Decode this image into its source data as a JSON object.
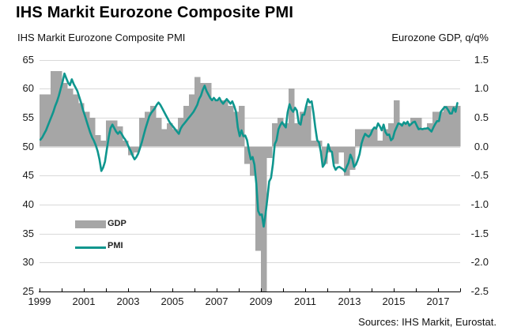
{
  "title": "IHS Markit Eurozone Composite PMI",
  "axis_titles": {
    "left": "IHS Markit Eurozone Composite PMI",
    "right": "Eurozone GDP, q/q%"
  },
  "legend": {
    "gdp": "GDP",
    "pmi": "PMI"
  },
  "source": "Sources: IHS Markit, Eurostat.",
  "colors": {
    "bar": "#a6a6a6",
    "line": "#0f968e",
    "grid": "#d9d9d9",
    "axis": "#000000",
    "text": "#1a1a1a"
  },
  "chart_data": {
    "type": "combo",
    "title": "IHS Markit Eurozone Composite PMI",
    "grid": true,
    "legend_position": "inside-bottom-left",
    "left_axis": {
      "label": "IHS Markit Eurozone Composite PMI",
      "min": 25,
      "max": 65,
      "tick_labels": [
        "65",
        "60",
        "55",
        "50",
        "45",
        "40",
        "35",
        "30",
        "25"
      ]
    },
    "right_axis": {
      "label": "Eurozone GDP, q/q%",
      "min": -1.5,
      "max": 1.5,
      "tick_labels": [
        "1.5",
        "1.0",
        "0.5",
        "0.0",
        "-0.5",
        "-1.0",
        "-1.5",
        "-2.0",
        "-2.5"
      ],
      "mapping_note": "right axis value = (left PMI value - 50) / 10"
    },
    "x_axis": {
      "min_year": 1999,
      "max_year": 2018,
      "tick_years": [
        1999,
        2000,
        2001,
        2002,
        2003,
        2004,
        2005,
        2006,
        2007,
        2008,
        2009,
        2010,
        2011,
        2012,
        2013,
        2014,
        2015,
        2016,
        2017,
        2018
      ],
      "tick_labels": [
        "1999",
        "2001",
        "2003",
        "2005",
        "2007",
        "2009",
        "2011",
        "2013",
        "2015",
        "2017"
      ]
    },
    "series": [
      {
        "name": "GDP",
        "type": "bar",
        "axis": "right",
        "color": "#a6a6a6",
        "frequency": "quarterly",
        "start": "1999-Q1",
        "values": [
          0.9,
          0.9,
          1.3,
          1.3,
          1.1,
          1.0,
          0.9,
          0.75,
          0.6,
          0.5,
          0.2,
          0.1,
          0.45,
          0.45,
          0.35,
          0.1,
          -0.15,
          -0.1,
          0.5,
          0.6,
          0.7,
          0.5,
          0.3,
          0.4,
          0.3,
          0.5,
          0.7,
          0.9,
          1.2,
          1.1,
          1.1,
          0.8,
          0.8,
          0.8,
          0.7,
          0.6,
          0.7,
          -0.3,
          -0.5,
          -1.8,
          -2.8,
          -0.2,
          0.4,
          0.5,
          0.4,
          1.0,
          0.4,
          0.6,
          0.7,
          0.1,
          0.1,
          -0.3,
          -0.1,
          -0.3,
          -0.1,
          -0.5,
          -0.4,
          0.3,
          0.3,
          0.3,
          0.3,
          0.1,
          0.3,
          0.4,
          0.8,
          0.4,
          0.4,
          0.5,
          0.5,
          0.3,
          0.4,
          0.6,
          0.6,
          0.7,
          0.7,
          0.7
        ]
      },
      {
        "name": "PMI",
        "type": "line",
        "axis": "left",
        "color": "#0f968e",
        "frequency": "monthly",
        "start": "1999-01",
        "values": [
          51.2,
          51.6,
          52.2,
          52.8,
          53.6,
          54.4,
          55.2,
          56.0,
          57.0,
          57.8,
          58.8,
          60.0,
          61.2,
          62.6,
          61.8,
          61.0,
          60.6,
          61.6,
          60.8,
          60.2,
          59.6,
          58.6,
          57.6,
          56.4,
          55.4,
          54.4,
          53.4,
          52.4,
          51.6,
          51.0,
          50.2,
          49.2,
          47.8,
          45.8,
          46.4,
          47.4,
          49.6,
          51.6,
          53.2,
          53.8,
          53.2,
          52.6,
          52.2,
          52.6,
          52.2,
          51.6,
          51.2,
          50.6,
          49.8,
          49.2,
          48.4,
          47.8,
          48.2,
          48.8,
          49.8,
          50.8,
          52.0,
          53.2,
          54.2,
          55.2,
          55.8,
          56.2,
          56.6,
          57.2,
          57.6,
          57.2,
          56.6,
          56.0,
          55.4,
          54.8,
          54.2,
          53.8,
          53.4,
          53.0,
          52.6,
          52.2,
          53.1,
          53.6,
          54.0,
          54.4,
          54.8,
          55.2,
          55.6,
          56.0,
          56.6,
          57.2,
          58.2,
          58.8,
          59.8,
          60.5,
          59.6,
          59.0,
          58.4,
          58.0,
          58.4,
          58.0,
          58.0,
          58.4,
          57.8,
          57.4,
          57.8,
          58.2,
          57.8,
          57.4,
          57.8,
          57.0,
          56.0,
          53.3,
          51.8,
          52.8,
          51.8,
          51.9,
          51.1,
          49.3,
          47.8,
          48.2,
          46.9,
          43.6,
          38.9,
          38.2,
          38.3,
          36.2,
          38.3,
          41.1,
          44.0,
          44.6,
          47.0,
          50.4,
          51.1,
          53.0,
          53.7,
          54.2,
          53.7,
          53.3,
          55.9,
          57.3,
          56.4,
          56.0,
          56.7,
          56.2,
          54.1,
          53.8,
          55.5,
          55.5,
          57.0,
          58.2,
          57.6,
          57.8,
          55.8,
          53.3,
          51.1,
          50.7,
          49.1,
          46.5,
          47.0,
          48.3,
          50.4,
          49.3,
          49.1,
          46.7,
          46.0,
          46.4,
          46.5,
          46.3,
          46.1,
          45.7,
          46.5,
          47.2,
          48.6,
          47.9,
          46.5,
          46.9,
          47.7,
          48.7,
          50.5,
          51.5,
          52.2,
          51.9,
          51.7,
          52.1,
          52.9,
          53.3,
          53.1,
          54.0,
          53.5,
          52.8,
          53.8,
          52.5,
          52.0,
          52.1,
          51.1,
          51.4,
          52.6,
          53.3,
          54.0,
          53.9,
          53.6,
          54.2,
          53.9,
          54.3,
          53.6,
          53.9,
          54.2,
          54.3,
          53.6,
          53.0,
          53.1,
          53.0,
          53.1,
          53.1,
          53.2,
          52.9,
          52.6,
          53.3,
          53.9,
          54.4,
          54.4,
          56.0,
          56.4,
          56.8,
          56.8,
          56.3,
          55.7,
          55.7,
          56.7,
          56.0,
          57.5
        ]
      }
    ]
  }
}
